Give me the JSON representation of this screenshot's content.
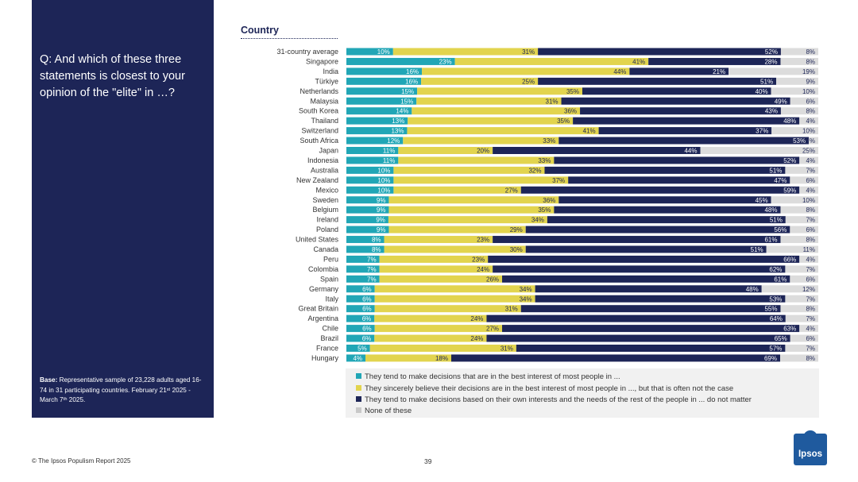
{
  "side": {
    "question": "Q: And which of these three statements is closest to your opinion of the \"elite\" in …?",
    "base_label": "Base:",
    "base_text": "Representative sample of 23,228 adults aged 16-74 in 31 participating countries. February 21ˢᵗ 2025 - March 7ᵗʰ 2025."
  },
  "section_title": "Country",
  "footer": {
    "copyright": "© The Ipsos Populism Report 2025",
    "page": "39",
    "logo": "Ipsos"
  },
  "colors": {
    "s1": "#21a6b6",
    "s2": "#e2d44e",
    "s3": "#1d2557",
    "s4": "#dcdcdc",
    "panel": "#1d2557"
  },
  "chart_data": {
    "type": "bar",
    "orientation": "horizontal",
    "stacked": true,
    "xlim": [
      0,
      100
    ],
    "categories": [
      "31-country average",
      "Singapore",
      "India",
      "Türkiye",
      "Netherlands",
      "Malaysia",
      "South Korea",
      "Thailand",
      "Switzerland",
      "South Africa",
      "Japan",
      "Indonesia",
      "Australia",
      "New Zealand",
      "Mexico",
      "Sweden",
      "Belgium",
      "Ireland",
      "Poland",
      "United States",
      "Canada",
      "Peru",
      "Colombia",
      "Spain",
      "Germany",
      "Italy",
      "Great Britain",
      "Argentina",
      "Chile",
      "Brazil",
      "France",
      "Hungary"
    ],
    "series": [
      {
        "name": "They tend to make decisions that are in the best interest of most people in ...",
        "values": [
          10,
          23,
          16,
          16,
          15,
          15,
          14,
          13,
          13,
          12,
          11,
          11,
          10,
          10,
          10,
          9,
          9,
          9,
          9,
          8,
          8,
          7,
          7,
          7,
          6,
          6,
          6,
          6,
          6,
          6,
          5,
          4
        ]
      },
      {
        "name": "They sincerely believe their decisions are in the best interest of most people in ..., but that is often not the case",
        "values": [
          31,
          41,
          44,
          25,
          35,
          31,
          36,
          35,
          41,
          33,
          20,
          33,
          32,
          37,
          27,
          36,
          35,
          34,
          29,
          23,
          30,
          23,
          24,
          26,
          34,
          34,
          31,
          24,
          27,
          24,
          31,
          18
        ]
      },
      {
        "name": "They tend to make decisions based on their own interests and the needs of the rest of the people in ... do not matter",
        "values": [
          52,
          28,
          21,
          51,
          40,
          49,
          43,
          48,
          37,
          53,
          44,
          52,
          51,
          47,
          59,
          45,
          48,
          51,
          56,
          61,
          51,
          66,
          62,
          61,
          48,
          53,
          55,
          64,
          63,
          65,
          57,
          69
        ]
      },
      {
        "name": "None of these",
        "values": [
          8,
          8,
          19,
          9,
          10,
          6,
          8,
          4,
          10,
          2,
          25,
          4,
          7,
          6,
          4,
          10,
          8,
          7,
          6,
          8,
          11,
          4,
          7,
          6,
          12,
          7,
          8,
          7,
          4,
          6,
          7,
          8
        ]
      }
    ],
    "value_labels": [
      [
        "10%",
        "31%",
        "52%",
        "8%"
      ],
      [
        "23%",
        "41%",
        "28%",
        "8%"
      ],
      [
        "16%",
        "44%",
        "21%",
        "19%"
      ],
      [
        "16%",
        "25%",
        "51%",
        "9%"
      ],
      [
        "15%",
        "35%",
        "40%",
        "10%"
      ],
      [
        "15%",
        "31%",
        "49%",
        "6%"
      ],
      [
        "14%",
        "36%",
        "43%",
        "8%"
      ],
      [
        "13%",
        "35%",
        "48%",
        "4%"
      ],
      [
        "13%",
        "41%",
        "37%",
        "10%"
      ],
      [
        "12%",
        "33%",
        "53%",
        "%"
      ],
      [
        "11%",
        "20%",
        "44%",
        "25%"
      ],
      [
        "11%",
        "33%",
        "52%",
        "4%"
      ],
      [
        "10%",
        "32%",
        "51%",
        "7%"
      ],
      [
        "10%",
        "37%",
        "47%",
        "6%"
      ],
      [
        "10%",
        "27%",
        "59%",
        "4%"
      ],
      [
        "9%",
        "36%",
        "45%",
        "10%"
      ],
      [
        "9%",
        "35%",
        "48%",
        "8%"
      ],
      [
        "9%",
        "34%",
        "51%",
        "7%"
      ],
      [
        "9%",
        "29%",
        "56%",
        "6%"
      ],
      [
        "8%",
        "23%",
        "61%",
        "8%"
      ],
      [
        "8%",
        "30%",
        "51%",
        "11%"
      ],
      [
        "7%",
        "23%",
        "66%",
        "4%"
      ],
      [
        "7%",
        "24%",
        "62%",
        "7%"
      ],
      [
        "7%",
        "26%",
        "61%",
        "6%"
      ],
      [
        "6%",
        "34%",
        "48%",
        "12%"
      ],
      [
        "6%",
        "34%",
        "53%",
        "7%"
      ],
      [
        "6%",
        "31%",
        "55%",
        "8%"
      ],
      [
        "6%",
        "24%",
        "64%",
        "7%"
      ],
      [
        "6%",
        "27%",
        "63%",
        "4%"
      ],
      [
        "6%",
        "24%",
        "65%",
        "6%"
      ],
      [
        "5%",
        "31%",
        "57%",
        "7%"
      ],
      [
        "4%",
        "18%",
        "69%",
        "8%"
      ]
    ]
  }
}
